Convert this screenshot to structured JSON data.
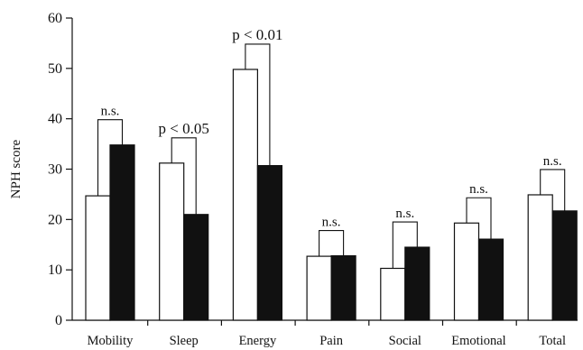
{
  "chart_data": {
    "type": "bar",
    "ylabel": "NPH score",
    "xlabel": "",
    "title": "",
    "ylim": [
      0,
      60
    ],
    "yticks": [
      "0",
      "10",
      "20",
      "30",
      "40",
      "50",
      "60"
    ],
    "categories": [
      "Mobility",
      "Sleep",
      "Energy",
      "Pain",
      "Social",
      "Emotional",
      "Total"
    ],
    "series": [
      {
        "values": [
          24.7,
          31.2,
          49.8,
          12.7,
          10.3,
          19.3,
          24.9
        ]
      },
      {
        "values": [
          34.8,
          21.0,
          30.7,
          12.8,
          14.5,
          16.1,
          21.7
        ]
      }
    ],
    "annotations": [
      "n.s.",
      "p < 0.05",
      "p < 0.01",
      "n.s.",
      "n.s.",
      "n.s.",
      "n.s."
    ],
    "grid": false,
    "colors": {
      "series_fill": [
        "#ffffff",
        "#111111"
      ],
      "stroke": "#111111"
    }
  }
}
